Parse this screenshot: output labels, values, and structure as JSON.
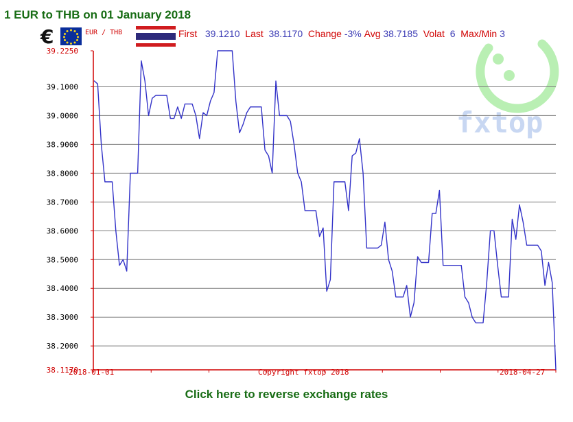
{
  "title": "1 EUR to THB on 01 January 2018",
  "legend": {
    "pair_label": "EUR / THB",
    "first_label": "First",
    "first_value": "39.1210",
    "last_label": "Last",
    "last_value": "38.1170",
    "change_label": "Change",
    "change_value": "-3%",
    "avg_label": "Avg",
    "avg_value": "38.7185",
    "volat_label": "Volat",
    "volat_value": "6",
    "maxmin_label": "Max/Min",
    "maxmin_value": "3"
  },
  "watermark": "fxtop.com",
  "copyright": "Copyright fxtop 2018",
  "reverse_link": "Click here to reverse exchange rates",
  "colors": {
    "title_green": "#176c14",
    "axis_red": "#d00000",
    "series_blue": "#3232c8",
    "grid_gray": "#7a7a7a",
    "watermark_green": "#b9efb3",
    "watermark_blue": "#c8d7f2"
  },
  "chart_data": {
    "type": "line",
    "ylim": [
      38.117,
      39.225
    ],
    "y_ticks": [
      "39.2250",
      "39.1000",
      "39.0000",
      "38.9000",
      "38.8000",
      "38.7000",
      "38.6000",
      "38.5000",
      "38.4000",
      "38.3000",
      "38.2000",
      "38.1170"
    ],
    "x_start_label": "2018-01-01",
    "x_end_label": "2018-04-27",
    "grid": true,
    "series": [
      {
        "values": [
          39.121,
          39.11,
          38.9,
          38.77,
          38.77,
          38.77,
          38.6,
          38.48,
          38.5,
          38.46,
          38.8,
          38.8,
          38.8,
          39.19,
          39.12,
          39.0,
          39.06,
          39.07,
          39.07,
          39.07,
          39.07,
          38.99,
          38.99,
          39.03,
          38.99,
          39.04,
          39.04,
          39.04,
          39.0,
          38.92,
          39.01,
          39.0,
          39.05,
          39.08,
          39.225,
          39.225,
          39.225,
          39.225,
          39.225,
          39.05,
          38.94,
          38.97,
          39.01,
          39.03,
          39.03,
          39.03,
          39.03,
          38.88,
          38.86,
          38.8,
          39.12,
          39.0,
          39.0,
          39.0,
          38.98,
          38.9,
          38.8,
          38.77,
          38.67,
          38.67,
          38.67,
          38.67,
          38.58,
          38.61,
          38.39,
          38.43,
          38.77,
          38.77,
          38.77,
          38.77,
          38.67,
          38.86,
          38.87,
          38.92,
          38.8,
          38.54,
          38.54,
          38.54,
          38.54,
          38.55,
          38.63,
          38.5,
          38.46,
          38.37,
          38.37,
          38.37,
          38.41,
          38.3,
          38.35,
          38.51,
          38.49,
          38.49,
          38.49,
          38.66,
          38.66,
          38.74,
          38.48,
          38.48,
          38.48,
          38.48,
          38.48,
          38.48,
          38.37,
          38.35,
          38.3,
          38.28,
          38.28,
          38.28,
          38.42,
          38.6,
          38.6,
          38.48,
          38.37,
          38.37,
          38.37,
          38.64,
          38.57,
          38.69,
          38.63,
          38.55,
          38.55,
          38.55,
          38.55,
          38.53,
          38.41,
          38.49,
          38.42,
          38.117
        ]
      }
    ]
  }
}
